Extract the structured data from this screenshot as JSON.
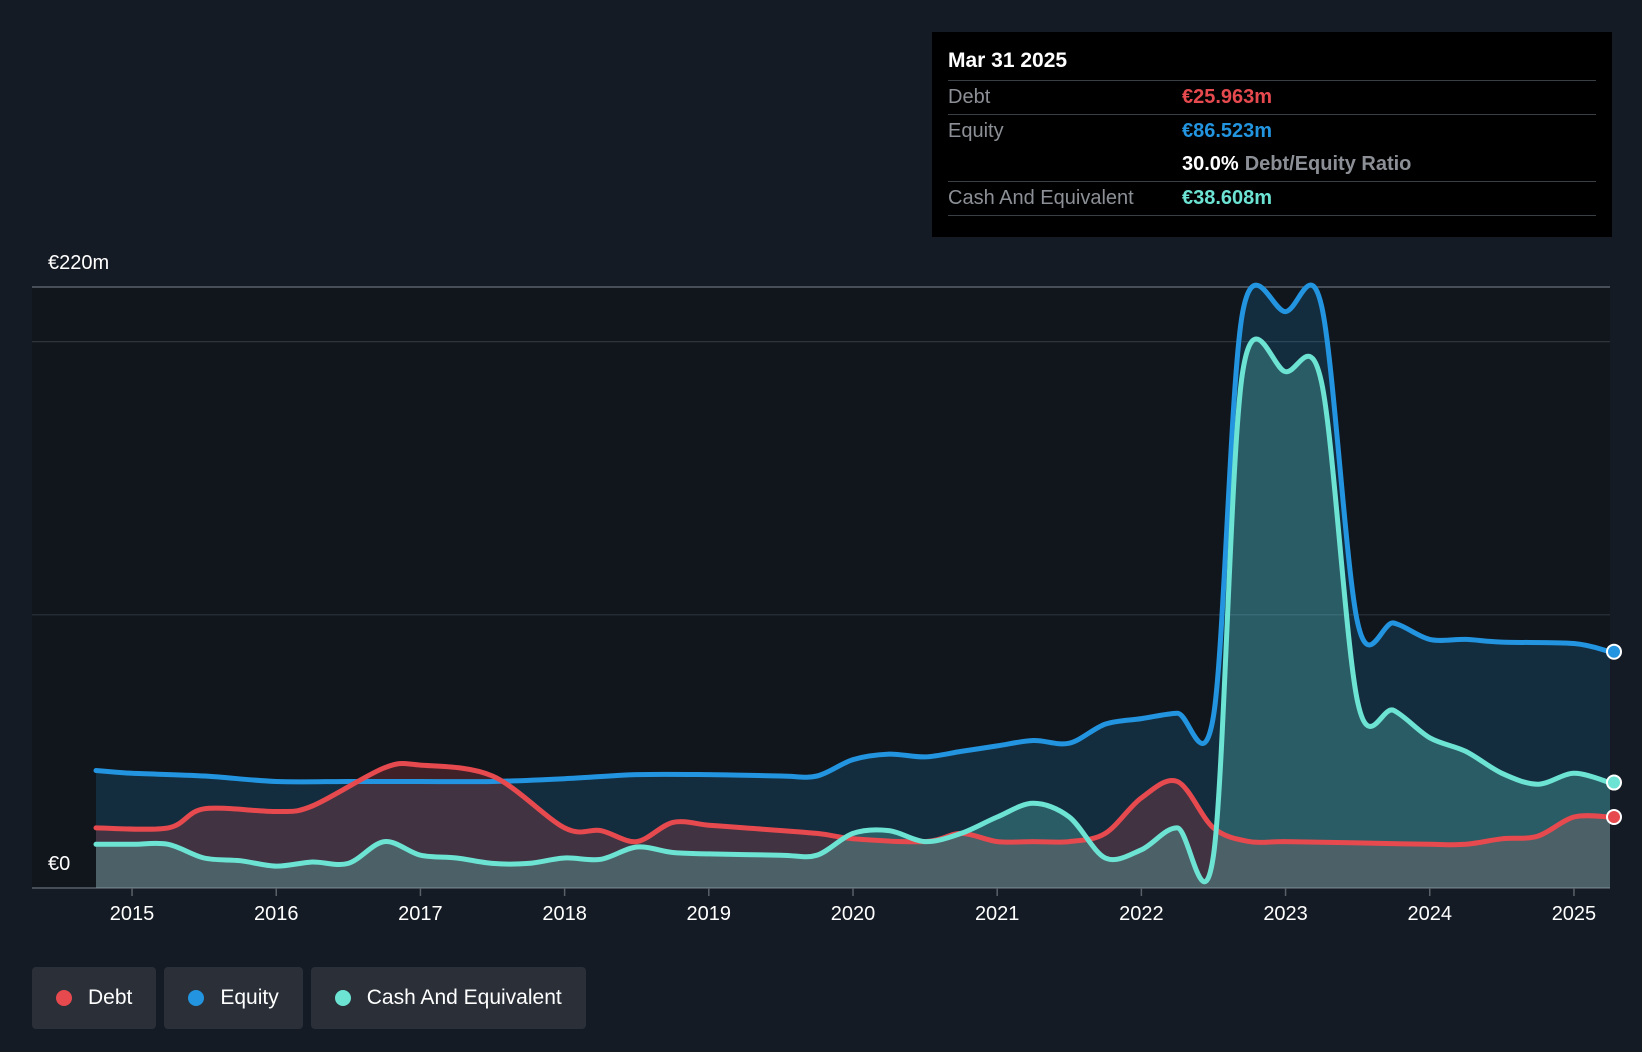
{
  "tooltip": {
    "date": "Mar 31 2025",
    "debt_label": "Debt",
    "debt_value": "€25.963m",
    "equity_label": "Equity",
    "equity_value": "€86.523m",
    "ratio_value": "30.0%",
    "ratio_label": "Debt/Equity Ratio",
    "cash_label": "Cash And Equivalent",
    "cash_value": "€38.608m"
  },
  "legend": [
    {
      "label": "Debt",
      "color": "#e64a4f"
    },
    {
      "label": "Equity",
      "color": "#2394df"
    },
    {
      "label": "Cash And Equivalent",
      "color": "#6de3d3"
    }
  ],
  "chart_data": {
    "type": "area",
    "ylim": [
      0,
      220
    ],
    "xlim": [
      2014.75,
      2025.25
    ],
    "y_tick_labels": {
      "top": "€220m",
      "bottom": "€0"
    },
    "x_ticks": [
      "2015",
      "2016",
      "2017",
      "2018",
      "2019",
      "2020",
      "2021",
      "2022",
      "2023",
      "2024",
      "2025"
    ],
    "colors": {
      "debt": "#e64a4f",
      "equity": "#2394df",
      "cash": "#6de3d3"
    },
    "series": [
      {
        "name": "Debt",
        "points": [
          [
            2014.75,
            22
          ],
          [
            2015.25,
            22
          ],
          [
            2015.5,
            29
          ],
          [
            2016.0,
            28
          ],
          [
            2016.25,
            30
          ],
          [
            2016.75,
            44
          ],
          [
            2017.0,
            45
          ],
          [
            2017.5,
            41
          ],
          [
            2018.0,
            22
          ],
          [
            2018.25,
            21
          ],
          [
            2018.5,
            17
          ],
          [
            2018.75,
            24
          ],
          [
            2019.0,
            23
          ],
          [
            2019.25,
            22
          ],
          [
            2019.75,
            20
          ],
          [
            2020.0,
            18
          ],
          [
            2020.5,
            17
          ],
          [
            2020.75,
            20
          ],
          [
            2021.0,
            17
          ],
          [
            2021.25,
            17
          ],
          [
            2021.5,
            17
          ],
          [
            2021.75,
            20
          ],
          [
            2022.0,
            33
          ],
          [
            2022.25,
            39
          ],
          [
            2022.5,
            22
          ],
          [
            2022.75,
            17
          ],
          [
            2023.0,
            17
          ],
          [
            2023.5,
            16.5
          ],
          [
            2024.0,
            16
          ],
          [
            2024.25,
            16
          ],
          [
            2024.5,
            18
          ],
          [
            2024.75,
            19
          ],
          [
            2025.0,
            26
          ],
          [
            2025.25,
            26
          ]
        ]
      },
      {
        "name": "Equity",
        "points": [
          [
            2014.75,
            43
          ],
          [
            2015.0,
            42
          ],
          [
            2015.5,
            41
          ],
          [
            2016.0,
            39
          ],
          [
            2016.5,
            39
          ],
          [
            2017.0,
            39
          ],
          [
            2017.5,
            39
          ],
          [
            2018.0,
            40
          ],
          [
            2018.5,
            41.5
          ],
          [
            2019.0,
            41.5
          ],
          [
            2019.5,
            41
          ],
          [
            2019.75,
            41
          ],
          [
            2020.0,
            47
          ],
          [
            2020.25,
            49
          ],
          [
            2020.5,
            48
          ],
          [
            2020.75,
            50
          ],
          [
            2021.0,
            52
          ],
          [
            2021.25,
            54
          ],
          [
            2021.5,
            53
          ],
          [
            2021.75,
            60
          ],
          [
            2022.0,
            62
          ],
          [
            2022.25,
            64
          ],
          [
            2022.5,
            63
          ],
          [
            2022.7,
            210
          ],
          [
            2023.0,
            211
          ],
          [
            2023.25,
            213
          ],
          [
            2023.5,
            97
          ],
          [
            2023.75,
            97
          ],
          [
            2024.0,
            91
          ],
          [
            2024.25,
            91
          ],
          [
            2024.5,
            90
          ],
          [
            2025.0,
            89.5
          ],
          [
            2025.25,
            86.5
          ]
        ]
      },
      {
        "name": "Cash And Equivalent",
        "points": [
          [
            2014.75,
            16
          ],
          [
            2015.0,
            16
          ],
          [
            2015.25,
            16
          ],
          [
            2015.5,
            11
          ],
          [
            2015.75,
            10
          ],
          [
            2016.0,
            8
          ],
          [
            2016.25,
            9.5
          ],
          [
            2016.5,
            9
          ],
          [
            2016.75,
            17
          ],
          [
            2017.0,
            12
          ],
          [
            2017.25,
            11
          ],
          [
            2017.5,
            9
          ],
          [
            2017.75,
            9
          ],
          [
            2018.0,
            11
          ],
          [
            2018.25,
            10.5
          ],
          [
            2018.5,
            15
          ],
          [
            2018.75,
            13
          ],
          [
            2019.0,
            12.5
          ],
          [
            2019.5,
            12
          ],
          [
            2019.75,
            12
          ],
          [
            2020.0,
            20
          ],
          [
            2020.25,
            21
          ],
          [
            2020.5,
            17
          ],
          [
            2020.75,
            20
          ],
          [
            2021.0,
            26
          ],
          [
            2021.25,
            31
          ],
          [
            2021.5,
            26
          ],
          [
            2021.75,
            11
          ],
          [
            2022.0,
            14
          ],
          [
            2022.25,
            22
          ],
          [
            2022.5,
            12
          ],
          [
            2022.7,
            188
          ],
          [
            2023.0,
            189
          ],
          [
            2023.25,
            185
          ],
          [
            2023.5,
            68
          ],
          [
            2023.75,
            65
          ],
          [
            2024.0,
            55
          ],
          [
            2024.25,
            50
          ],
          [
            2024.5,
            42
          ],
          [
            2024.75,
            38
          ],
          [
            2025.0,
            42
          ],
          [
            2025.25,
            38.6
          ]
        ]
      }
    ]
  }
}
